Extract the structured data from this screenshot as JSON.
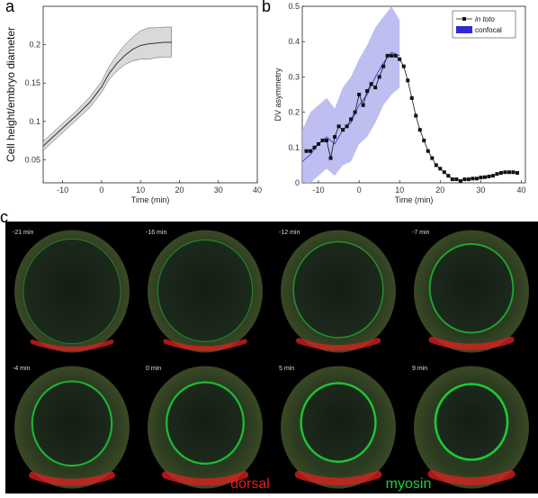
{
  "panel_labels": {
    "a": "a",
    "b": "b",
    "c": "c"
  },
  "chart_data": [
    {
      "type": "area",
      "panel": "a",
      "xlabel": "Time (min)",
      "ylabel": "Cell height/embryo diameter",
      "xlim": [
        -15,
        40
      ],
      "ylim": [
        0.02,
        0.25
      ],
      "xticks": [
        -10,
        0,
        10,
        20,
        30,
        40
      ],
      "yticks": [
        0.05,
        0.1,
        0.15,
        0.2
      ],
      "ytick_labels": [
        "0.05",
        "0.1",
        "0.15",
        "0.2"
      ],
      "x": [
        -15,
        -12,
        -9,
        -6,
        -3,
        0,
        2,
        4,
        6,
        8,
        10,
        12,
        14,
        16,
        18
      ],
      "mean": [
        0.068,
        0.082,
        0.096,
        0.11,
        0.125,
        0.145,
        0.163,
        0.176,
        0.186,
        0.194,
        0.199,
        0.201,
        0.202,
        0.203,
        0.203
      ],
      "upper": [
        0.074,
        0.088,
        0.102,
        0.116,
        0.132,
        0.152,
        0.172,
        0.187,
        0.2,
        0.21,
        0.218,
        0.222,
        0.222,
        0.223,
        0.223
      ],
      "lower": [
        0.062,
        0.076,
        0.09,
        0.104,
        0.118,
        0.138,
        0.155,
        0.166,
        0.174,
        0.179,
        0.181,
        0.181,
        0.183,
        0.184,
        0.184
      ],
      "line_color": "#333333",
      "band_color": "#d9d9d9"
    },
    {
      "type": "line",
      "panel": "b",
      "xlabel": "Time (min)",
      "ylabel": "DV asymmetry",
      "xlim": [
        -14,
        41
      ],
      "ylim": [
        0,
        0.5
      ],
      "xticks": [
        -10,
        0,
        10,
        20,
        30,
        40
      ],
      "yticks": [
        0,
        0.1,
        0.2,
        0.3,
        0.4,
        0.5
      ],
      "ytick_labels": [
        "0",
        "0.1",
        "0.2",
        "0.3",
        "0.4",
        "0.5"
      ],
      "legend_position": "top-right",
      "series": [
        {
          "name": "in toto",
          "color": "#111111",
          "marker": "square",
          "x": [
            -13,
            -12,
            -11,
            -10,
            -9,
            -8,
            -7,
            -6,
            -5,
            -4,
            -3,
            -2,
            -1,
            0,
            1,
            2,
            3,
            4,
            5,
            6,
            7,
            8,
            9,
            10,
            11,
            12,
            13,
            14,
            15,
            16,
            17,
            18,
            19,
            20,
            21,
            22,
            23,
            24,
            25,
            26,
            27,
            28,
            29,
            30,
            31,
            32,
            33,
            34,
            35,
            36,
            37,
            38,
            39
          ],
          "y": [
            0.09,
            0.09,
            0.1,
            0.11,
            0.12,
            0.12,
            0.07,
            0.13,
            0.16,
            0.15,
            0.16,
            0.18,
            0.2,
            0.25,
            0.22,
            0.26,
            0.28,
            0.27,
            0.3,
            0.33,
            0.36,
            0.36,
            0.36,
            0.35,
            0.33,
            0.29,
            0.24,
            0.19,
            0.15,
            0.12,
            0.09,
            0.07,
            0.05,
            0.04,
            0.03,
            0.02,
            0.01,
            0.01,
            0.005,
            0.01,
            0.01,
            0.012,
            0.012,
            0.015,
            0.016,
            0.018,
            0.02,
            0.025,
            0.028,
            0.03,
            0.03,
            0.03,
            0.028
          ]
        },
        {
          "name": "confocal",
          "color": "#2b2bd6",
          "x": [
            -14,
            -12,
            -10,
            -8,
            -6,
            -4,
            -2,
            0,
            2,
            4,
            6,
            8,
            10
          ],
          "mean": [
            0.06,
            0.08,
            0.11,
            0.13,
            0.11,
            0.15,
            0.17,
            0.22,
            0.25,
            0.3,
            0.34,
            0.37,
            0.36
          ],
          "upper": [
            0.15,
            0.2,
            0.22,
            0.24,
            0.21,
            0.27,
            0.3,
            0.35,
            0.39,
            0.44,
            0.47,
            0.5,
            0.46
          ],
          "lower": [
            0.0,
            0.0,
            0.02,
            0.04,
            0.02,
            0.05,
            0.06,
            0.11,
            0.13,
            0.17,
            0.22,
            0.25,
            0.27
          ],
          "band_color": "#b3b3ee"
        }
      ]
    }
  ],
  "panel_c": {
    "frames": [
      {
        "time": "-21 min",
        "stage": 0.0
      },
      {
        "time": "-16 min",
        "stage": 0.1
      },
      {
        "time": "-12 min",
        "stage": 0.3
      },
      {
        "time": "-7 min",
        "stage": 0.55
      },
      {
        "time": "-4 min",
        "stage": 0.7
      },
      {
        "time": "0 min",
        "stage": 0.8
      },
      {
        "time": "5 min",
        "stage": 0.9
      },
      {
        "time": "9 min",
        "stage": 1.0
      }
    ],
    "channel_labels": {
      "dorsal": "dorsal",
      "myosin": "myosin"
    },
    "colors": {
      "dorsal": "#e02020",
      "myosin": "#1fd13a",
      "background": "#000000"
    }
  }
}
